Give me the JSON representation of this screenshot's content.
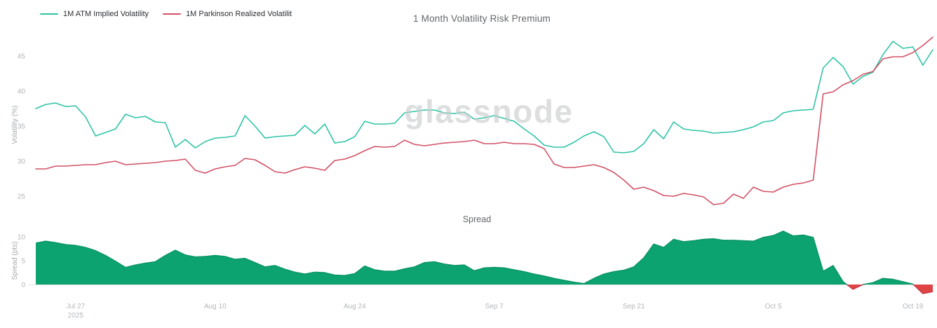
{
  "watermark": "glassnode",
  "legend": [
    {
      "label": "1M ATM Implied Volatility",
      "color": "#2fc4a7"
    },
    {
      "label": "1M Parkinson Realized Volatilit",
      "color": "#d15266"
    }
  ],
  "chart_data": {
    "type": "line+area",
    "top_chart": {
      "title": "1 Month Volatility Risk Premium",
      "ylabel": "Volatility (%)",
      "y_ticks": [
        45,
        40,
        35,
        30,
        25
      ],
      "ylim": [
        23,
        48
      ],
      "grid": false,
      "series": [
        {
          "name": "1M ATM Implied Volatility",
          "color": "#2fc4a7",
          "values": [
            37.5,
            38.1,
            38.3,
            37.8,
            37.9,
            36.3,
            33.6,
            34.1,
            34.6,
            36.7,
            36.2,
            36.4,
            35.6,
            35.5,
            32.0,
            33.1,
            31.9,
            32.8,
            33.3,
            33.4,
            33.6,
            36.5,
            35.0,
            33.3,
            33.5,
            33.6,
            33.7,
            35.1,
            33.9,
            35.3,
            32.6,
            32.8,
            33.5,
            35.7,
            35.3,
            35.3,
            35.4,
            36.9,
            37.1,
            37.3,
            37.3,
            36.9,
            36.8,
            37.0,
            36.0,
            36.2,
            36.5,
            36.1,
            35.7,
            34.6,
            33.6,
            32.3,
            32.0,
            32.0,
            32.7,
            33.6,
            34.2,
            33.5,
            31.3,
            31.2,
            31.4,
            32.5,
            34.5,
            33.2,
            35.6,
            34.6,
            34.4,
            34.3,
            34.0,
            34.1,
            34.2,
            34.5,
            34.9,
            35.6,
            35.8,
            36.9,
            37.2,
            37.3,
            37.4,
            43.3,
            44.8,
            43.5,
            41.0,
            42.1,
            42.7,
            45.2,
            47.1,
            46.1,
            46.3,
            43.7,
            45.9
          ]
        },
        {
          "name": "1M Parkinson Realized Volatilit",
          "color": "#d15266",
          "values": [
            28.9,
            28.9,
            29.3,
            29.3,
            29.4,
            29.5,
            29.5,
            29.8,
            30.0,
            29.5,
            29.6,
            29.7,
            29.8,
            30.0,
            30.1,
            30.3,
            28.7,
            28.3,
            28.9,
            29.2,
            29.4,
            30.4,
            30.2,
            29.4,
            28.5,
            28.3,
            28.8,
            29.2,
            29.0,
            28.7,
            30.1,
            30.3,
            30.8,
            31.5,
            32.1,
            32.0,
            32.1,
            33.0,
            32.4,
            32.2,
            32.4,
            32.6,
            32.7,
            32.8,
            33.0,
            32.5,
            32.5,
            32.7,
            32.5,
            32.5,
            32.4,
            31.8,
            29.6,
            29.1,
            29.1,
            29.3,
            29.5,
            29.1,
            28.4,
            27.3,
            26.0,
            26.3,
            25.8,
            25.1,
            25.0,
            25.4,
            25.2,
            24.9,
            23.8,
            24.0,
            25.3,
            24.7,
            26.3,
            25.7,
            25.6,
            26.3,
            26.7,
            26.9,
            27.3,
            39.6,
            39.9,
            40.9,
            41.5,
            42.4,
            42.8,
            44.6,
            44.9,
            44.9,
            45.5,
            46.5,
            47.7
          ]
        }
      ]
    },
    "bottom_chart": {
      "title": "Spread",
      "ylabel": "Spread (pts)",
      "y_ticks": [
        10,
        5,
        0
      ],
      "ylim": [
        -2.5,
        11.5
      ],
      "positive_color": "#0da371",
      "negative_color": "#e04343",
      "values": [
        8.7,
        9.1,
        8.8,
        8.4,
        8.2,
        7.8,
        7.1,
        6.1,
        4.9,
        3.6,
        4.1,
        4.5,
        4.8,
        6.1,
        7.2,
        6.2,
        5.8,
        5.9,
        6.1,
        5.9,
        5.3,
        5.5,
        4.6,
        3.7,
        4.0,
        3.2,
        2.6,
        2.2,
        2.6,
        2.5,
        2.0,
        1.9,
        2.3,
        3.9,
        3.1,
        2.8,
        2.8,
        3.3,
        3.7,
        4.6,
        4.8,
        4.3,
        4.0,
        4.1,
        2.9,
        3.5,
        3.6,
        3.5,
        3.1,
        2.7,
        2.2,
        1.8,
        1.3,
        0.9,
        0.5,
        0.2,
        1.3,
        2.2,
        2.7,
        3.0,
        3.7,
        5.6,
        8.5,
        7.8,
        9.5,
        9.0,
        9.2,
        9.5,
        9.6,
        9.3,
        9.3,
        9.2,
        9.1,
        9.9,
        10.3,
        11.2,
        10.2,
        10.4,
        9.9,
        2.8,
        4.0,
        0.6,
        -1.0,
        0.0,
        0.4,
        1.3,
        1.1,
        0.6,
        0.1,
        -1.9,
        -1.5
      ]
    },
    "x_axis": {
      "points": 91,
      "tick_labels": [
        "Jul 27",
        "Aug 10",
        "Aug 24",
        "Sep 7",
        "Sep 21",
        "Oct 5",
        "Oct 19"
      ],
      "tick_indices": [
        4,
        18,
        32,
        46,
        60,
        74,
        88
      ],
      "year_label": "2025"
    }
  }
}
